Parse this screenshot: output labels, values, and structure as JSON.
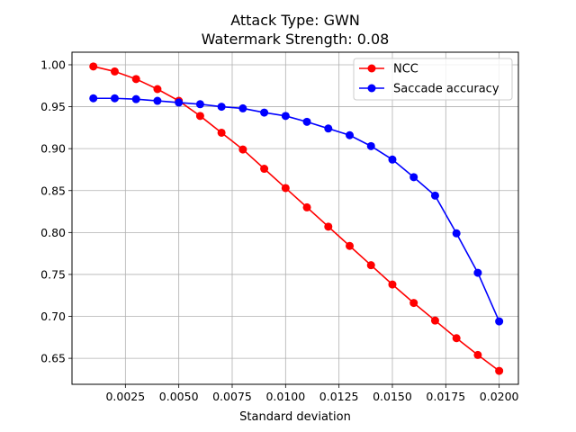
{
  "chart_data": {
    "type": "line",
    "title": "Attack Type: GWN",
    "subtitle": "Watermark Strength: 0.08",
    "xlabel": "Standard deviation",
    "ylabel": "",
    "xlim": [
      0.0,
      0.0209
    ],
    "ylim": [
      0.619,
      1.015
    ],
    "x": [
      0.001,
      0.002,
      0.003,
      0.004,
      0.005,
      0.006,
      0.007,
      0.008,
      0.009,
      0.01,
      0.011,
      0.012,
      0.013,
      0.014,
      0.015,
      0.016,
      0.017,
      0.018,
      0.019,
      0.02
    ],
    "x_ticks": [
      0.0025,
      0.005,
      0.0075,
      0.01,
      0.0125,
      0.015,
      0.0175,
      0.02
    ],
    "x_tick_labels": [
      "0.0025",
      "0.0050",
      "0.0075",
      "0.0100",
      "0.0125",
      "0.0150",
      "0.0175",
      "0.0200"
    ],
    "y_ticks": [
      0.65,
      0.7,
      0.75,
      0.8,
      0.85,
      0.9,
      0.95,
      1.0
    ],
    "y_tick_labels": [
      "0.65",
      "0.70",
      "0.75",
      "0.80",
      "0.85",
      "0.90",
      "0.95",
      "1.00"
    ],
    "grid": true,
    "legend_position": "top-right",
    "series": [
      {
        "name": "NCC",
        "color": "#ff0000",
        "values": [
          0.998,
          0.992,
          0.983,
          0.971,
          0.957,
          0.939,
          0.919,
          0.899,
          0.876,
          0.853,
          0.83,
          0.807,
          0.784,
          0.761,
          0.738,
          0.716,
          0.695,
          0.674,
          0.654,
          0.635
        ]
      },
      {
        "name": "Saccade accuracy",
        "color": "#0000ff",
        "values": [
          0.96,
          0.96,
          0.959,
          0.957,
          0.955,
          0.953,
          0.95,
          0.948,
          0.943,
          0.939,
          0.932,
          0.924,
          0.916,
          0.903,
          0.887,
          0.866,
          0.844,
          0.799,
          0.752,
          0.694
        ]
      }
    ]
  }
}
